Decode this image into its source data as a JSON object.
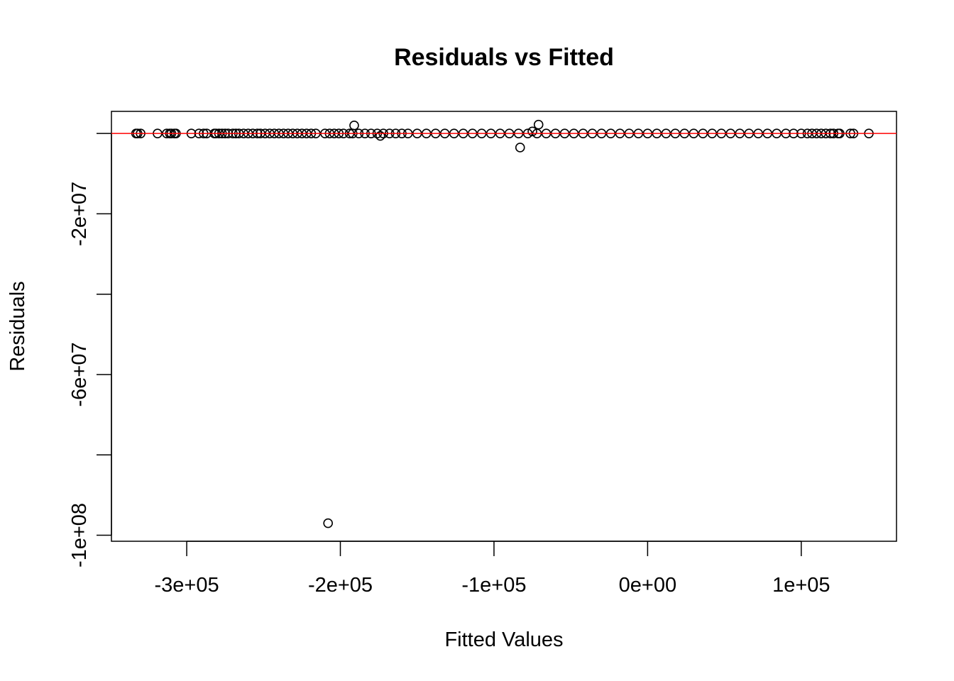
{
  "chart_data": {
    "type": "scatter",
    "title": "Residuals vs Fitted",
    "xlabel": "Fitted Values",
    "ylabel": "Residuals",
    "xlim": [
      -349000,
      162000
    ],
    "ylim": [
      -101500000,
      5500000
    ],
    "x_ticks": [
      {
        "value": -300000,
        "label": "-3e+05"
      },
      {
        "value": -200000,
        "label": "-2e+05"
      },
      {
        "value": -100000,
        "label": "-1e+05"
      },
      {
        "value": 0,
        "label": "0e+00"
      },
      {
        "value": 100000,
        "label": "1e+05"
      }
    ],
    "y_ticks": [
      {
        "value": 0,
        "label": ""
      },
      {
        "value": -20000000,
        "label": "-2e+07"
      },
      {
        "value": -40000000,
        "label": ""
      },
      {
        "value": -60000000,
        "label": "-6e+07"
      },
      {
        "value": -80000000,
        "label": ""
      },
      {
        "value": -100000000,
        "label": "-1e+08"
      }
    ],
    "reference_line": {
      "y": 0,
      "color": "#ff0000"
    },
    "point_color": "#000000",
    "notable_points": [
      {
        "x": -208000,
        "y": -97000000
      },
      {
        "x": -191000,
        "y": 2000000
      },
      {
        "x": -71000,
        "y": 2200000
      },
      {
        "x": -83000,
        "y": -3500000
      },
      {
        "x": -75000,
        "y": 500000
      },
      {
        "x": -174000,
        "y": -600000
      }
    ],
    "band_points": {
      "y": 0,
      "x_values": [
        -333000,
        -332000,
        -330000,
        -319000,
        -313000,
        -311000,
        -310000,
        -308000,
        -307000,
        -297000,
        -292000,
        -289000,
        -287000,
        -282000,
        -281000,
        -279000,
        -277000,
        -275000,
        -273000,
        -270000,
        -268000,
        -266000,
        -263000,
        -260000,
        -257000,
        -254000,
        -252000,
        -249000,
        -246000,
        -243000,
        -240000,
        -237000,
        -234000,
        -231000,
        -228000,
        -225000,
        -222000,
        -219000,
        -216000,
        -210000,
        -207000,
        -204000,
        -201000,
        -198000,
        -194000,
        -192000,
        -188000,
        -184000,
        -180000,
        -176000,
        -172000,
        -168000,
        -164000,
        -160000,
        -156000,
        -150000,
        -144000,
        -138000,
        -132000,
        -126000,
        -120000,
        -114000,
        -108000,
        -102000,
        -96000,
        -90000,
        -84000,
        -78000,
        -72000,
        -66000,
        -60000,
        -54000,
        -48000,
        -42000,
        -36000,
        -30000,
        -24000,
        -18000,
        -12000,
        -6000,
        0,
        6000,
        12000,
        18000,
        24000,
        30000,
        36000,
        42000,
        48000,
        54000,
        60000,
        66000,
        72000,
        78000,
        84000,
        90000,
        95000,
        100000,
        104000,
        107000,
        110000,
        113000,
        116000,
        119000,
        121000,
        124000,
        125000,
        132000,
        134000,
        144000
      ]
    }
  }
}
